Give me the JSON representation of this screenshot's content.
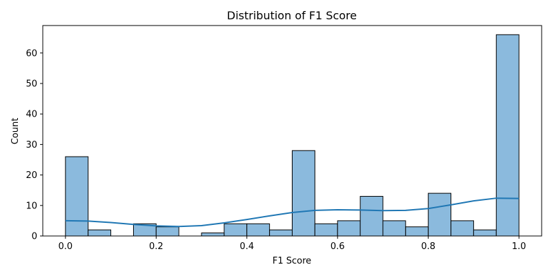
{
  "chart_data": {
    "type": "bar",
    "title": "Distribution of F1 Score",
    "xlabel": "F1 Score",
    "ylabel": "Count",
    "xlim": [
      -0.05,
      1.05
    ],
    "ylim": [
      0,
      69
    ],
    "xticks": [
      0.0,
      0.2,
      0.4,
      0.6,
      0.8,
      1.0
    ],
    "xtick_labels": [
      "0.0",
      "0.2",
      "0.4",
      "0.6",
      "0.8",
      "1.0"
    ],
    "yticks": [
      0,
      10,
      20,
      30,
      40,
      50,
      60
    ],
    "ytick_labels": [
      "0",
      "10",
      "20",
      "30",
      "40",
      "50",
      "60"
    ],
    "bin_edges": [
      0.0,
      0.05,
      0.1,
      0.15,
      0.2,
      0.25,
      0.3,
      0.35,
      0.4,
      0.45,
      0.5,
      0.55,
      0.6,
      0.65,
      0.7,
      0.75,
      0.8,
      0.85,
      0.9,
      0.95,
      1.0
    ],
    "counts": [
      26,
      2,
      0,
      4,
      3,
      0,
      1,
      4,
      4,
      2,
      28,
      4,
      5,
      13,
      5,
      3,
      14,
      5,
      2,
      66
    ],
    "kde": {
      "x": [
        0.0,
        0.05,
        0.1,
        0.15,
        0.2,
        0.25,
        0.3,
        0.35,
        0.4,
        0.45,
        0.5,
        0.55,
        0.6,
        0.65,
        0.7,
        0.75,
        0.8,
        0.85,
        0.9,
        0.95,
        1.0
      ],
      "y": [
        5.0,
        4.9,
        4.4,
        3.8,
        3.3,
        3.1,
        3.4,
        4.3,
        5.4,
        6.6,
        7.7,
        8.4,
        8.6,
        8.5,
        8.3,
        8.4,
        9.0,
        10.2,
        11.5,
        12.4,
        12.3
      ]
    },
    "grid": false,
    "colors": {
      "bar": "#8bbadd",
      "edge": "#000000",
      "kde": "#1f77b4"
    }
  }
}
